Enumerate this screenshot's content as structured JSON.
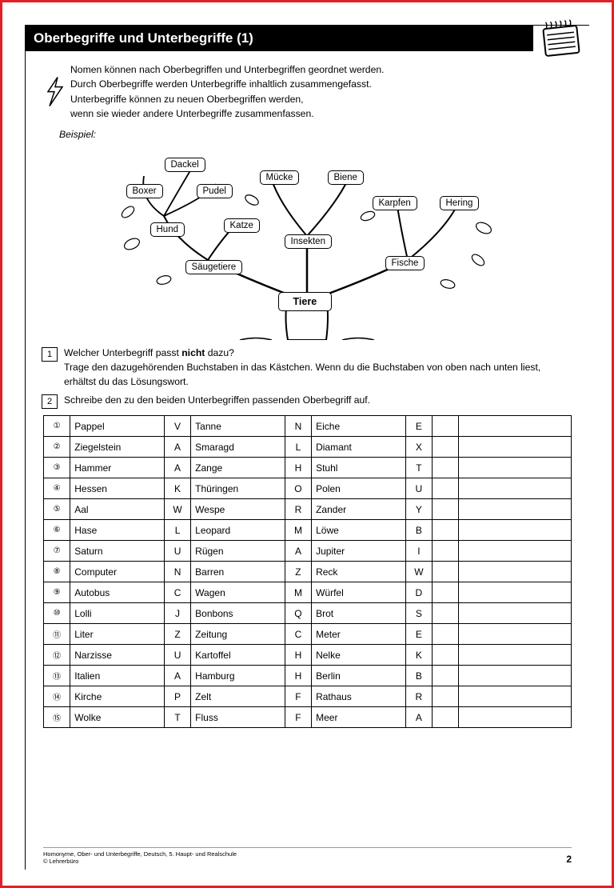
{
  "title": "Oberbegriffe und Unterbegriffe (1)",
  "intro_lines": [
    "Nomen können nach Oberbegriffen und Unterbegriffen geordnet werden.",
    "Durch Oberbegriffe werden Unterbegriffe inhaltlich zusammengefasst.",
    "Unterbegriffe können zu neuen Oberbegriffen werden,",
    "wenn sie wieder andere Unterbegriffe zusammenfassen."
  ],
  "beispiel": "Beispiel:",
  "tree_root": "Tiere",
  "tree_mid": [
    "Säugetiere",
    "Insekten",
    "Fische"
  ],
  "tree_hund": "Hund",
  "tree_katze": "Katze",
  "tree_muecke": "Mücke",
  "tree_biene": "Biene",
  "tree_karpfen": "Karpfen",
  "tree_hering": "Hering",
  "tree_boxer": "Boxer",
  "tree_pudel": "Pudel",
  "tree_dackel": "Dackel",
  "q1_num": "1",
  "q1_text_a": "Welcher Unterbegriff passt ",
  "q1_text_bold": "nicht",
  "q1_text_b": " dazu?",
  "q1_text_c": "Trage den dazugehörenden Buchstaben in das Kästchen. Wenn du die Buchstaben von oben nach unten liest, erhältst du das Lösungswort.",
  "q2_num": "2",
  "q2_text": "Schreibe den zu den beiden Unterbegriffen passenden Oberbegriff auf.",
  "rows": [
    {
      "n": "①",
      "w1": "Pappel",
      "l1": "V",
      "w2": "Tanne",
      "l2": "N",
      "w3": "Eiche",
      "l3": "E"
    },
    {
      "n": "②",
      "w1": "Ziegelstein",
      "l1": "A",
      "w2": "Smaragd",
      "l2": "L",
      "w3": "Diamant",
      "l3": "X"
    },
    {
      "n": "③",
      "w1": "Hammer",
      "l1": "A",
      "w2": "Zange",
      "l2": "H",
      "w3": "Stuhl",
      "l3": "T"
    },
    {
      "n": "④",
      "w1": "Hessen",
      "l1": "K",
      "w2": "Thüringen",
      "l2": "O",
      "w3": "Polen",
      "l3": "U"
    },
    {
      "n": "⑤",
      "w1": "Aal",
      "l1": "W",
      "w2": "Wespe",
      "l2": "R",
      "w3": "Zander",
      "l3": "Y"
    },
    {
      "n": "⑥",
      "w1": "Hase",
      "l1": "L",
      "w2": "Leopard",
      "l2": "M",
      "w3": "Löwe",
      "l3": "B"
    },
    {
      "n": "⑦",
      "w1": "Saturn",
      "l1": "U",
      "w2": "Rügen",
      "l2": "A",
      "w3": "Jupiter",
      "l3": "I"
    },
    {
      "n": "⑧",
      "w1": "Computer",
      "l1": "N",
      "w2": "Barren",
      "l2": "Z",
      "w3": "Reck",
      "l3": "W"
    },
    {
      "n": "⑨",
      "w1": "Autobus",
      "l1": "C",
      "w2": "Wagen",
      "l2": "M",
      "w3": "Würfel",
      "l3": "D"
    },
    {
      "n": "⑩",
      "w1": "Lolli",
      "l1": "J",
      "w2": "Bonbons",
      "l2": "Q",
      "w3": "Brot",
      "l3": "S"
    },
    {
      "n": "⑪",
      "w1": "Liter",
      "l1": "Z",
      "w2": "Zeitung",
      "l2": "C",
      "w3": "Meter",
      "l3": "E"
    },
    {
      "n": "⑫",
      "w1": "Narzisse",
      "l1": "U",
      "w2": "Kartoffel",
      "l2": "H",
      "w3": "Nelke",
      "l3": "K"
    },
    {
      "n": "⑬",
      "w1": "Italien",
      "l1": "A",
      "w2": "Hamburg",
      "l2": "H",
      "w3": "Berlin",
      "l3": "B"
    },
    {
      "n": "⑭",
      "w1": "Kirche",
      "l1": "P",
      "w2": "Zelt",
      "l2": "F",
      "w3": "Rathaus",
      "l3": "R"
    },
    {
      "n": "⑮",
      "w1": "Wolke",
      "l1": "T",
      "w2": "Fluss",
      "l2": "F",
      "w3": "Meer",
      "l3": "A"
    }
  ],
  "footer_l1": "Homonyme, Ober- und Unterbegriffe, Deutsch, 5. Haupt- und Realschule",
  "footer_l2": "© Lehrerbüro",
  "pagenum": "2",
  "colors": {
    "frame": "#e31e24",
    "ink": "#000000",
    "bg": "#ffffff"
  }
}
